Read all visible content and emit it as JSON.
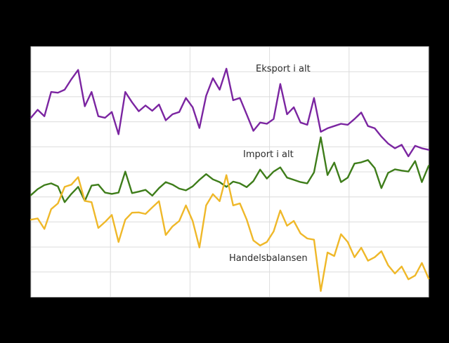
{
  "figure": {
    "background_color": "#000000",
    "plot_background_color": "#FFFFFF",
    "gridline_color": "#DCDCDC",
    "border_color": "#C8C8C8",
    "label_text_color": "#2B2B2B"
  },
  "chart_data": {
    "type": "line",
    "title": "",
    "xlabel": "",
    "ylabel": "",
    "x_tick_labels_visible": false,
    "y_tick_labels_visible": false,
    "x_index": "0-59 (60 consecutive periods, evenly spaced; tick labels not shown in image)",
    "ylim": [
      0,
      10
    ],
    "y_unit": "gridline-divisions (horizontal gridlines every 1 unit; axis value labels not shown in image)",
    "grid": true,
    "vertical_divisions": 5,
    "horizontal_divisions": 10,
    "legend_position": "inline-annotations",
    "series": [
      {
        "id": "eksport",
        "name": "Eksport i alt",
        "color": "#7B25A1",
        "values": [
          7.16,
          7.48,
          7.22,
          8.19,
          8.16,
          8.28,
          8.7,
          9.07,
          7.62,
          8.19,
          7.22,
          7.16,
          7.39,
          6.5,
          8.19,
          7.78,
          7.42,
          7.65,
          7.44,
          7.69,
          7.06,
          7.3,
          7.39,
          7.95,
          7.58,
          6.75,
          8.04,
          8.74,
          8.28,
          9.12,
          7.86,
          7.95,
          7.3,
          6.64,
          6.97,
          6.92,
          7.11,
          8.51,
          7.3,
          7.58,
          6.97,
          6.88,
          7.95,
          6.6,
          6.74,
          6.83,
          6.92,
          6.88,
          7.11,
          7.37,
          6.83,
          6.74,
          6.41,
          6.13,
          5.94,
          6.08,
          5.62,
          6.04,
          5.94,
          5.88
        ]
      },
      {
        "id": "import",
        "name": "Import i alt",
        "color": "#3E7D1A",
        "values": [
          4.07,
          4.31,
          4.47,
          4.54,
          4.42,
          3.79,
          4.12,
          4.4,
          3.84,
          4.45,
          4.49,
          4.17,
          4.12,
          4.17,
          5.01,
          4.15,
          4.21,
          4.28,
          4.05,
          4.35,
          4.59,
          4.49,
          4.33,
          4.26,
          4.42,
          4.68,
          4.91,
          4.7,
          4.59,
          4.4,
          4.61,
          4.54,
          4.39,
          4.63,
          5.09,
          4.73,
          5.01,
          5.18,
          4.77,
          4.68,
          4.59,
          4.54,
          4.98,
          6.38,
          4.87,
          5.37,
          4.59,
          4.77,
          5.33,
          5.38,
          5.47,
          5.15,
          4.35,
          4.96,
          5.1,
          5.05,
          5.01,
          5.43,
          4.59,
          5.24
        ]
      },
      {
        "id": "handelsbalansen",
        "name": "Handelsbalansen",
        "color": "#EFB829",
        "values": [
          3.09,
          3.14,
          2.72,
          3.51,
          3.74,
          4.4,
          4.49,
          4.79,
          3.84,
          3.79,
          2.76,
          3.0,
          3.28,
          2.2,
          3.09,
          3.37,
          3.38,
          3.32,
          3.58,
          3.83,
          2.48,
          2.82,
          3.04,
          3.66,
          3.04,
          1.98,
          3.66,
          4.11,
          3.83,
          4.87,
          3.66,
          3.74,
          3.1,
          2.26,
          2.06,
          2.2,
          2.62,
          3.46,
          2.85,
          3.04,
          2.54,
          2.34,
          2.29,
          0.24,
          1.78,
          1.64,
          2.51,
          2.2,
          1.59,
          1.97,
          1.45,
          1.59,
          1.83,
          1.27,
          0.94,
          1.22,
          0.71,
          0.86,
          1.36,
          0.74
        ]
      }
    ]
  }
}
